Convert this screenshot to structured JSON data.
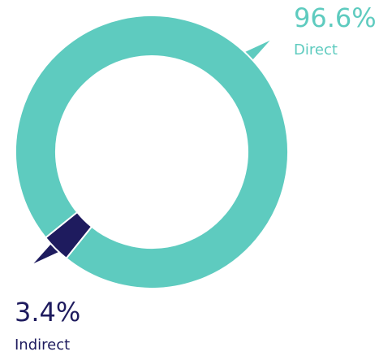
{
  "chart_data": {
    "type": "pie",
    "donut": true,
    "categories": [
      "Direct",
      "Indirect"
    ],
    "values": [
      96.6,
      3.4
    ],
    "value_labels": [
      "96.6%",
      "3.4%"
    ],
    "colors": [
      "#5ecbbf",
      "#1e1b5e"
    ]
  }
}
